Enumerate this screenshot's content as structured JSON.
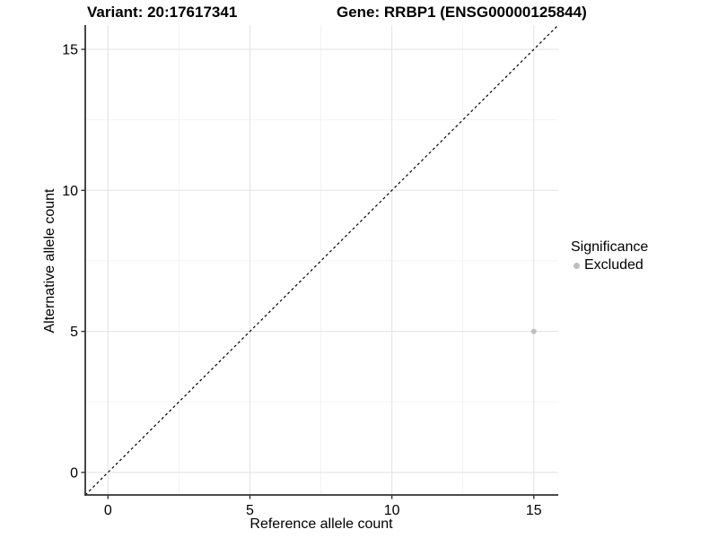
{
  "figure": {
    "title_variant": "Variant: 20:17617341",
    "title_gene": "Gene: RRBP1 (ENSG00000125844)"
  },
  "chart_data": {
    "type": "scatter",
    "title": "Variant: 20:17617341   Gene: RRBP1 (ENSG00000125844)",
    "xlabel": "Reference allele count",
    "ylabel": "Alternative allele count",
    "xlim": [
      -0.8,
      15.86
    ],
    "ylim": [
      -0.8,
      15.86
    ],
    "x_ticks": [
      0,
      5,
      10,
      15
    ],
    "y_ticks": [
      0,
      5,
      10,
      15
    ],
    "x_minor_ticks": [
      2.5,
      7.5,
      12.5
    ],
    "y_minor_ticks": [
      2.5,
      7.5,
      12.5
    ],
    "grid": "major+minor",
    "legend_position": "right",
    "reference_line": {
      "type": "identity",
      "slope": 1,
      "intercept": 0,
      "style": "dashed",
      "color": "#000000"
    },
    "series": [
      {
        "name": "Excluded",
        "color": "#bebebe",
        "points": [
          {
            "x": 15,
            "y": 5
          }
        ]
      }
    ],
    "legend": {
      "title": "Significance",
      "items": [
        {
          "label": "Excluded",
          "color": "#bebebe"
        }
      ]
    }
  },
  "colors": {
    "background": "#ffffff",
    "axis": "#333333",
    "grid_major": "#e5e5e5",
    "grid_minor": "#f2f2f2",
    "text": "#000000",
    "point": "#bebebe"
  }
}
